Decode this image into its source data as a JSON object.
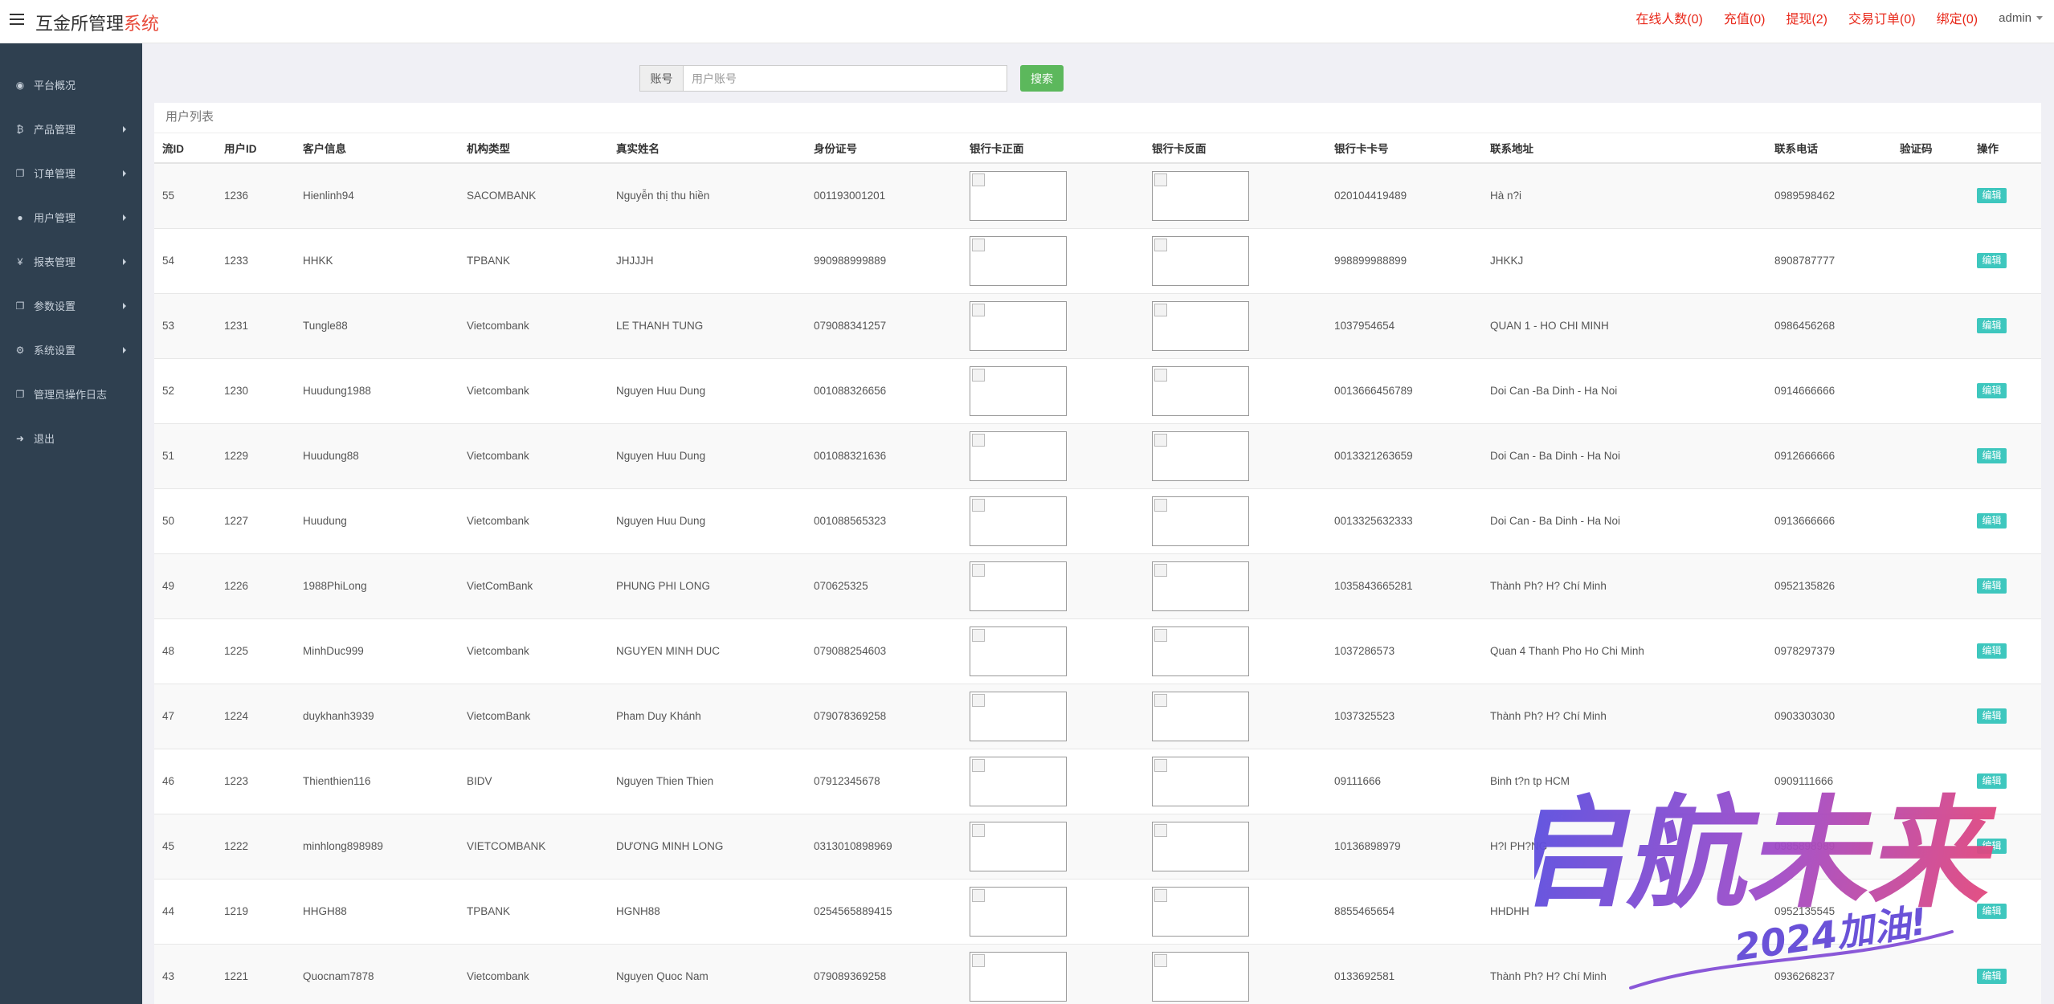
{
  "app": {
    "brand_main": "互金所管理",
    "brand_accent": "系统",
    "accent_color": "#e74c3c"
  },
  "topnav": {
    "links": [
      {
        "label": "在线人数(0)"
      },
      {
        "label": "充值(0)"
      },
      {
        "label": "提现(2)"
      },
      {
        "label": "交易订单(0)"
      },
      {
        "label": "绑定(0)"
      }
    ],
    "user": "admin"
  },
  "sidebar": {
    "items": [
      {
        "label": "平台概况",
        "icon": "dashboard-icon",
        "glyph": "◉",
        "has_arrow": false
      },
      {
        "label": "产品管理",
        "icon": "bitcoin-icon",
        "glyph": "₿",
        "has_arrow": true
      },
      {
        "label": "订单管理",
        "icon": "copy-icon",
        "glyph": "❐",
        "has_arrow": true
      },
      {
        "label": "用户管理",
        "icon": "user-icon",
        "glyph": "●",
        "has_arrow": true
      },
      {
        "label": "报表管理",
        "icon": "yen-icon",
        "glyph": "¥",
        "has_arrow": true
      },
      {
        "label": "参数设置",
        "icon": "copy-icon",
        "glyph": "❐",
        "has_arrow": true
      },
      {
        "label": "系统设置",
        "icon": "gears-icon",
        "glyph": "⚙",
        "has_arrow": true
      },
      {
        "label": "管理员操作日志",
        "icon": "copy-icon",
        "glyph": "❐",
        "has_arrow": false
      },
      {
        "label": "退出",
        "icon": "sign-out-icon",
        "glyph": "➜",
        "has_arrow": false
      }
    ]
  },
  "search": {
    "label": "账号",
    "placeholder": "用户账号",
    "button": "搜索"
  },
  "panel": {
    "title": "用户列表"
  },
  "table": {
    "columns": [
      "流ID",
      "用户ID",
      "客户信息",
      "机构类型",
      "真实姓名",
      "身份证号",
      "银行卡正面",
      "银行卡反面",
      "银行卡卡号",
      "联系地址",
      "联系电话",
      "验证码",
      "操作"
    ],
    "edit_label": "编辑",
    "rows": [
      {
        "flow_id": "55",
        "user_id": "1236",
        "customer": "Hienlinh94",
        "bank": "SACOMBANK",
        "real_name": "Nguyễn thị thu hiền",
        "id_no": "001193001201",
        "card_no": "020104419489",
        "address": "Hà n?i",
        "phone": "0989598462",
        "code": ""
      },
      {
        "flow_id": "54",
        "user_id": "1233",
        "customer": "HHKK",
        "bank": "TPBANK",
        "real_name": "JHJJJH",
        "id_no": "990988999889",
        "card_no": "998899988899",
        "address": "JHKKJ",
        "phone": "8908787777",
        "code": ""
      },
      {
        "flow_id": "53",
        "user_id": "1231",
        "customer": "Tungle88",
        "bank": "Vietcombank",
        "real_name": "LE THANH TUNG",
        "id_no": "079088341257",
        "card_no": "1037954654",
        "address": "QUAN 1 - HO CHI MINH",
        "phone": "0986456268",
        "code": ""
      },
      {
        "flow_id": "52",
        "user_id": "1230",
        "customer": "Huudung1988",
        "bank": "Vietcombank",
        "real_name": "Nguyen Huu Dung",
        "id_no": "001088326656",
        "card_no": "0013666456789",
        "address": "Doi Can -Ba Dinh - Ha Noi",
        "phone": "0914666666",
        "code": ""
      },
      {
        "flow_id": "51",
        "user_id": "1229",
        "customer": "Huudung88",
        "bank": "Vietcombank",
        "real_name": "Nguyen Huu Dung",
        "id_no": "001088321636",
        "card_no": "0013321263659",
        "address": "Doi Can - Ba Dinh - Ha Noi",
        "phone": "0912666666",
        "code": ""
      },
      {
        "flow_id": "50",
        "user_id": "1227",
        "customer": "Huudung",
        "bank": "Vietcombank",
        "real_name": "Nguyen Huu Dung",
        "id_no": "001088565323",
        "card_no": "0013325632333",
        "address": "Doi Can - Ba Dinh - Ha Noi",
        "phone": "0913666666",
        "code": ""
      },
      {
        "flow_id": "49",
        "user_id": "1226",
        "customer": "1988PhiLong",
        "bank": "VietComBank",
        "real_name": "PHUNG PHI LONG",
        "id_no": "070625325",
        "card_no": "1035843665281",
        "address": "Thành Ph? H? Chí Minh",
        "phone": "0952135826",
        "code": ""
      },
      {
        "flow_id": "48",
        "user_id": "1225",
        "customer": "MinhDuc999",
        "bank": "Vietcombank",
        "real_name": "NGUYEN MINH DUC",
        "id_no": "079088254603",
        "card_no": "1037286573",
        "address": "Quan 4 Thanh Pho Ho Chi Minh",
        "phone": "0978297379",
        "code": ""
      },
      {
        "flow_id": "47",
        "user_id": "1224",
        "customer": "duykhanh3939",
        "bank": "VietcomBank",
        "real_name": "Pham Duy Khánh",
        "id_no": "079078369258",
        "card_no": "1037325523",
        "address": "Thành Ph? H? Chí Minh",
        "phone": "0903303030",
        "code": ""
      },
      {
        "flow_id": "46",
        "user_id": "1223",
        "customer": "Thienthien116",
        "bank": "BIDV",
        "real_name": "Nguyen Thien Thien",
        "id_no": "07912345678",
        "card_no": "09111666",
        "address": "Binh t?n tp HCM",
        "phone": "0909111666",
        "code": ""
      },
      {
        "flow_id": "45",
        "user_id": "1222",
        "customer": "minhlong898989",
        "bank": "VIETCOMBANK",
        "real_name": "DƯƠNG MINH LONG",
        "id_no": "0313010898969",
        "card_no": "10136898979",
        "address": "H?I PH?NG",
        "phone": "0985898989",
        "code": ""
      },
      {
        "flow_id": "44",
        "user_id": "1219",
        "customer": "HHGH88",
        "bank": "TPBANK",
        "real_name": "HGNH88",
        "id_no": "0254565889415",
        "card_no": "8855465654",
        "address": "HHDHH",
        "phone": "0952135545",
        "code": ""
      },
      {
        "flow_id": "43",
        "user_id": "1221",
        "customer": "Quocnam7878",
        "bank": "Vietcombank",
        "real_name": "Nguyen Quoc Nam",
        "id_no": "079089369258",
        "card_no": "0133692581",
        "address": "Thành Ph? H? Chí Minh",
        "phone": "0936268237",
        "code": ""
      }
    ]
  },
  "watermark": {
    "main": "启航未来",
    "sub": "2024加油!"
  }
}
